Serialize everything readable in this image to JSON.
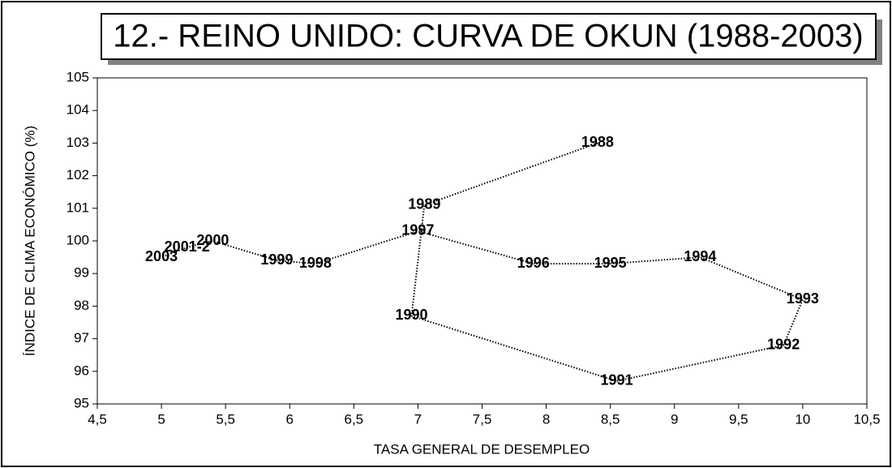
{
  "chart_data": {
    "type": "line",
    "title": "12.- REINO UNIDO: CURVA DE OKUN (1988-2003)",
    "x_label": "TASA GENERAL DE DESEMPLEO",
    "y_label": "ÍNDICE DE CLIMA ECONÓMICO (%)",
    "x": [
      8.4,
      7.05,
      6.95,
      8.55,
      9.85,
      10.0,
      9.2,
      8.5,
      7.9,
      7.0,
      6.2,
      5.9,
      5.4,
      5.2,
      5.0
    ],
    "values": [
      103.0,
      101.1,
      97.7,
      95.7,
      96.8,
      98.2,
      99.5,
      99.3,
      99.3,
      100.3,
      99.3,
      99.4,
      100.0,
      99.8,
      99.5
    ],
    "point_labels": [
      "1988",
      "1989",
      "1990",
      "1991",
      "1992",
      "1993",
      "1994",
      "1995",
      "1996",
      "1997",
      "1998",
      "1999",
      "2000",
      "2001-2",
      "2003"
    ],
    "color": "#000000",
    "xlim": [
      4.5,
      10.5
    ],
    "xticks": [
      {
        "value": 4.5,
        "label": "4,5"
      },
      5,
      {
        "value": 5.5,
        "label": "5,5"
      },
      6,
      {
        "value": 6.5,
        "label": "6,5"
      },
      7,
      {
        "value": 7.5,
        "label": "7,5"
      },
      8,
      {
        "value": 8.5,
        "label": "8,5"
      },
      9,
      {
        "value": 9.5,
        "label": "9,5"
      },
      10,
      {
        "value": 10.5,
        "label": "10,5"
      }
    ],
    "ylim": [
      95,
      105
    ],
    "yticks": [
      95,
      96,
      97,
      98,
      99,
      100,
      101,
      102,
      103,
      104,
      105
    ]
  }
}
